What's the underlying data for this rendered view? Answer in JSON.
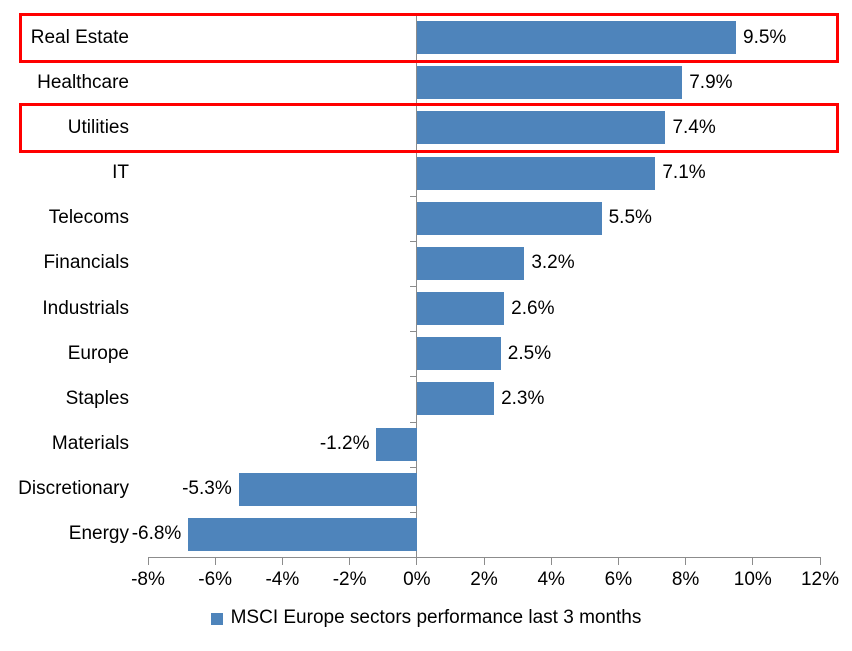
{
  "chart_data": {
    "type": "bar",
    "orientation": "horizontal",
    "categories": [
      "Real Estate",
      "Healthcare",
      "Utilities",
      "IT",
      "Telecoms",
      "Financials",
      "Industrials",
      "Europe",
      "Staples",
      "Materials",
      "Discretionary",
      "Energy"
    ],
    "values": [
      9.5,
      7.9,
      7.4,
      7.1,
      5.5,
      3.2,
      2.6,
      2.5,
      2.3,
      -1.2,
      -5.3,
      -6.8
    ],
    "value_labels": [
      "9.5%",
      "7.9%",
      "7.4%",
      "7.1%",
      "5.5%",
      "3.2%",
      "2.6%",
      "2.5%",
      "2.3%",
      "-1.2%",
      "-5.3%",
      "-6.8%"
    ],
    "x_tick_values": [
      -8,
      -6,
      -4,
      -2,
      0,
      2,
      4,
      6,
      8,
      10,
      12
    ],
    "x_tick_labels": [
      "-8%",
      "-6%",
      "-4%",
      "-2%",
      "0%",
      "2%",
      "4%",
      "6%",
      "8%",
      "10%",
      "12%"
    ],
    "xlim": [
      -8,
      12
    ],
    "grid": false,
    "legend_position": "bottom",
    "legend_label": "MSCI Europe sectors performance last 3 months",
    "bar_color": "#4E84BB",
    "highlight_color": "#FF0000",
    "axis_color": "#8C8C8C",
    "text_color": "#000000",
    "highlighted_categories": [
      "Real Estate",
      "Utilities"
    ]
  }
}
